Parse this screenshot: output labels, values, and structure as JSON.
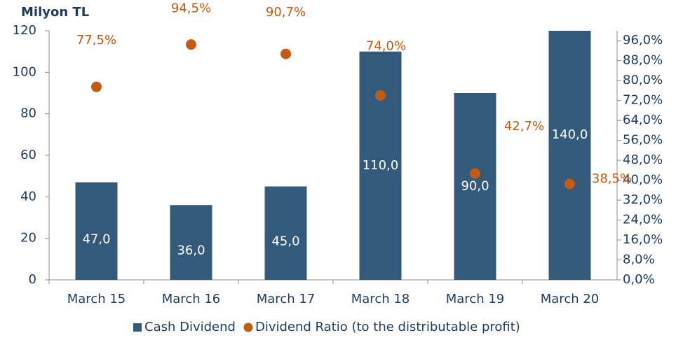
{
  "chart_data": {
    "type": "bar_dot",
    "y_axis_label": "Milyon TL",
    "categories": [
      "March 15",
      "March 16",
      "March 17",
      "March 18",
      "March 19",
      "March 20"
    ],
    "series": [
      {
        "name": "Cash Dividend",
        "color": "#345a7b",
        "type": "bar",
        "values": [
          47,
          36,
          45,
          110,
          90,
          140
        ],
        "value_labels": [
          "47,0",
          "36,0",
          "45,0",
          "110,0",
          "90,0",
          "140,0"
        ]
      },
      {
        "name": "Dividend Ratio (to the distributable profit)",
        "color": "#c55a11",
        "type": "dot",
        "axis": "y2",
        "values": [
          77.5,
          94.5,
          90.7,
          74.0,
          42.7,
          38.5
        ],
        "value_labels": [
          "77,5%",
          "94,5%",
          "90,7%",
          "74,0%",
          "42,7%",
          "38,5%"
        ]
      }
    ],
    "ylim": [
      0,
      120
    ],
    "yticks": [
      0,
      20,
      40,
      60,
      80,
      100,
      120
    ],
    "y2lim": [
      0,
      100
    ],
    "y2ticks": [
      {
        "value": 0,
        "label": "0,0%"
      },
      {
        "value": 8,
        "label": "8,0%"
      },
      {
        "value": 16,
        "label": "16,0%"
      },
      {
        "value": 24,
        "label": "24,0%"
      },
      {
        "value": 32,
        "label": "32,0%"
      },
      {
        "value": 40,
        "label": "40,0%"
      },
      {
        "value": 48,
        "label": "48,0%"
      },
      {
        "value": 56,
        "label": "56,0%"
      },
      {
        "value": 64,
        "label": "64,0%"
      },
      {
        "value": 72,
        "label": "72,0%"
      },
      {
        "value": 80,
        "label": "80,0%"
      },
      {
        "value": 88,
        "label": "88,0%"
      },
      {
        "value": 96,
        "label": "96,0%"
      }
    ],
    "legend": "bottom"
  }
}
